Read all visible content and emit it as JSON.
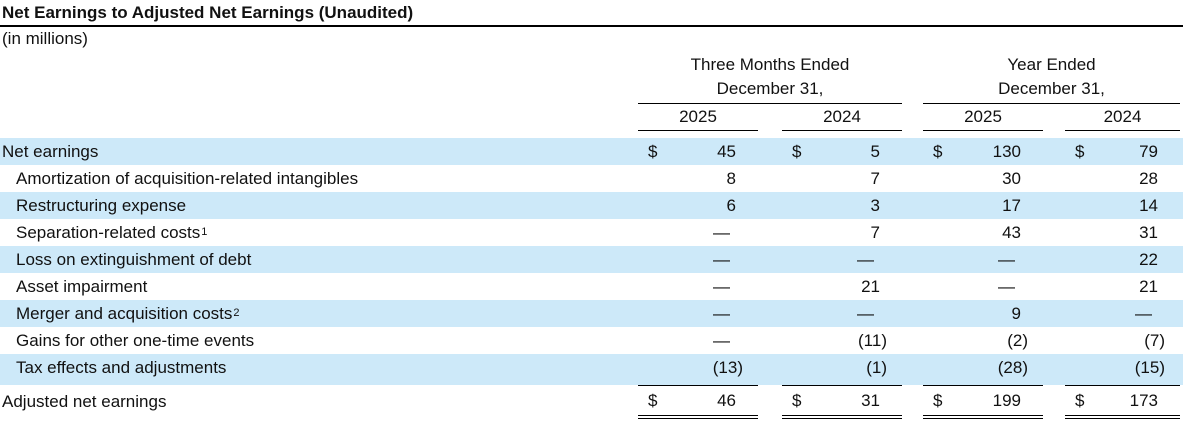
{
  "title": "Net Earnings to Adjusted Net Earnings (Unaudited)",
  "subtitle": "(in millions)",
  "dollar_sign": "$",
  "colors": {
    "stripe": "#cde9f9",
    "text": "#111111",
    "line": "#000000"
  },
  "table": {
    "col_groups": [
      {
        "line1": "Three Months Ended",
        "line2": "December 31,",
        "years": [
          "2025",
          "2024"
        ]
      },
      {
        "line1": "Year Ended",
        "line2": "December 31,",
        "years": [
          "2025",
          "2024"
        ]
      }
    ],
    "rows": [
      {
        "label": "Net earnings",
        "indent": false,
        "dollar": true,
        "values": [
          "45",
          "5",
          "130",
          "79"
        ]
      },
      {
        "label": "Amortization of acquisition-related intangibles",
        "indent": true,
        "dollar": false,
        "values": [
          "8",
          "7",
          "30",
          "28"
        ]
      },
      {
        "label": "Restructuring expense",
        "indent": true,
        "dollar": false,
        "values": [
          "6",
          "3",
          "17",
          "14"
        ]
      },
      {
        "label": "Separation-related costs",
        "sup": "1",
        "indent": true,
        "dollar": false,
        "values": [
          "—",
          "7",
          "43",
          "31"
        ]
      },
      {
        "label": "Loss on extinguishment of debt",
        "indent": true,
        "dollar": false,
        "values": [
          "—",
          "—",
          "—",
          "22"
        ]
      },
      {
        "label": "Asset impairment",
        "indent": true,
        "dollar": false,
        "values": [
          "—",
          "21",
          "—",
          "21"
        ]
      },
      {
        "label": "Merger and acquisition costs",
        "sup": "2",
        "indent": true,
        "dollar": false,
        "values": [
          "—",
          "—",
          "9",
          "—"
        ]
      },
      {
        "label": "Gains for other one-time events",
        "indent": true,
        "dollar": false,
        "values": [
          "—",
          "(11)",
          "(2)",
          "(7)"
        ]
      },
      {
        "label": "Tax effects and adjustments",
        "indent": true,
        "dollar": false,
        "values": [
          "(13)",
          "(1)",
          "(28)",
          "(15)"
        ]
      }
    ],
    "total_row": {
      "label": "Adjusted net earnings",
      "dollar": true,
      "values": [
        "46",
        "31",
        "199",
        "173"
      ]
    }
  }
}
